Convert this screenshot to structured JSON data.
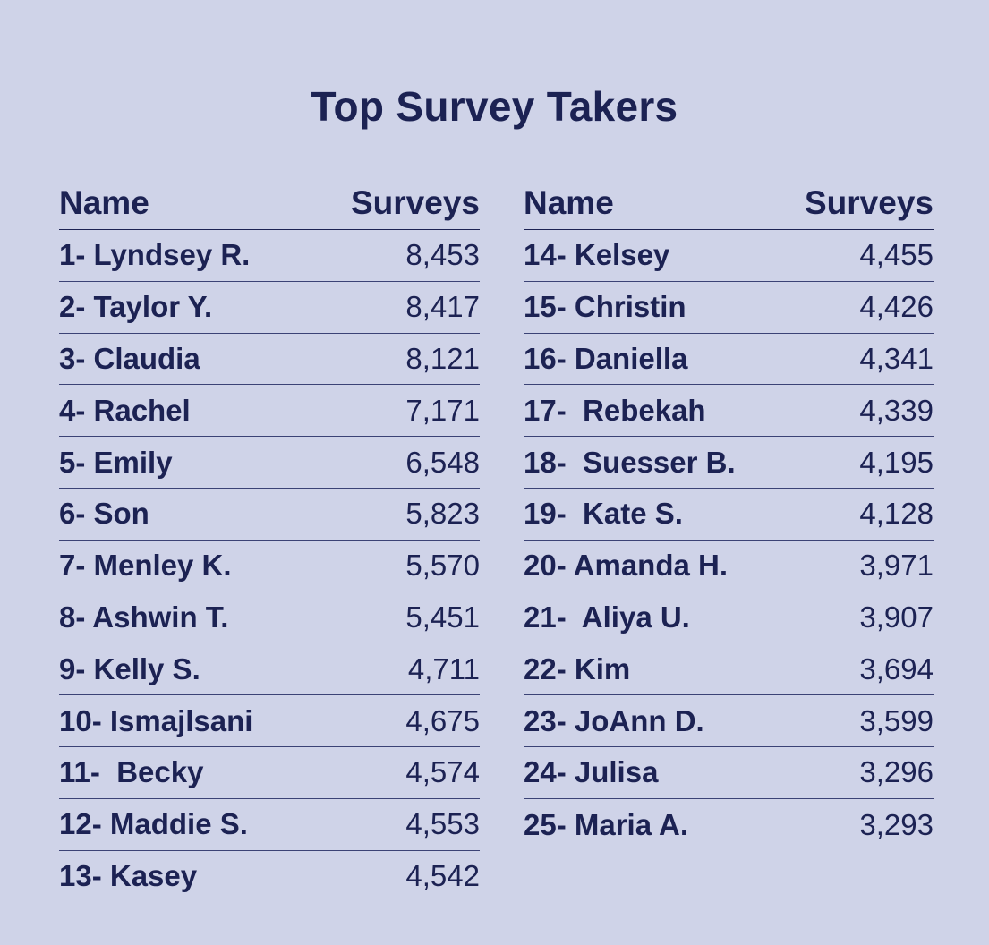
{
  "title": "Top Survey Takers",
  "colors": {
    "background": "#cfd3e8",
    "text": "#1c2253"
  },
  "headers": {
    "name": "Name",
    "surveys": "Surveys"
  },
  "left_rows": [
    {
      "name": "1- Lyndsey R.",
      "surveys": "8,453"
    },
    {
      "name": "2- Taylor Y.",
      "surveys": "8,417"
    },
    {
      "name": "3- Claudia",
      "surveys": "8,121"
    },
    {
      "name": "4- Rachel",
      "surveys": "7,171"
    },
    {
      "name": "5- Emily",
      "surveys": "6,548"
    },
    {
      "name": "6- Son",
      "surveys": "5,823"
    },
    {
      "name": "7- Menley K.",
      "surveys": "5,570"
    },
    {
      "name": "8- Ashwin T.",
      "surveys": "5,451"
    },
    {
      "name": "9- Kelly S.",
      "surveys": "4,711"
    },
    {
      "name": "10- Ismajlsani",
      "surveys": "4,675"
    },
    {
      "name": "11-  Becky",
      "surveys": "4,574"
    },
    {
      "name": "12- Maddie S.",
      "surveys": "4,553"
    },
    {
      "name": "13- Kasey",
      "surveys": "4,542"
    }
  ],
  "right_rows": [
    {
      "name": "14- Kelsey",
      "surveys": "4,455"
    },
    {
      "name": "15- Christin",
      "surveys": "4,426"
    },
    {
      "name": "16- Daniella",
      "surveys": "4,341"
    },
    {
      "name": "17-  Rebekah",
      "surveys": "4,339"
    },
    {
      "name": "18-  Suesser B.",
      "surveys": "4,195"
    },
    {
      "name": "19-  Kate S.",
      "surveys": "4,128"
    },
    {
      "name": "20- Amanda H.",
      "surveys": "3,971"
    },
    {
      "name": "21-  Aliya U.",
      "surveys": "3,907"
    },
    {
      "name": "22- Kim",
      "surveys": "3,694"
    },
    {
      "name": "23- JoAnn D.",
      "surveys": "3,599"
    },
    {
      "name": "24- Julisa",
      "surveys": "3,296"
    },
    {
      "name": "25- Maria A.",
      "surveys": "3,293"
    }
  ]
}
